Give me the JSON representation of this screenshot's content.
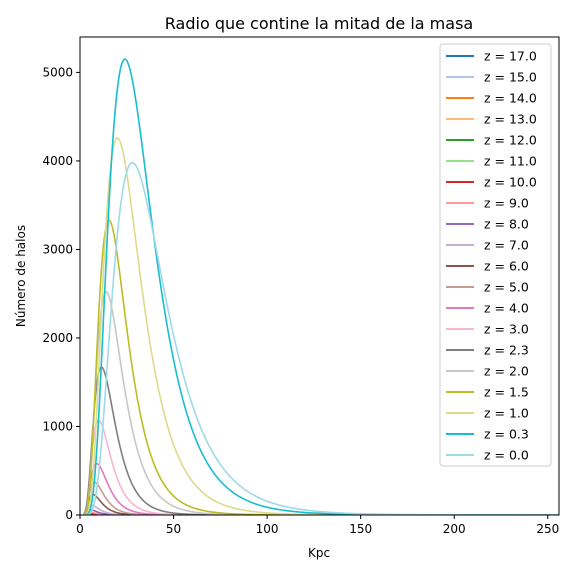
{
  "chart_data": {
    "type": "line",
    "title": "Radio que contine la mitad de la masa",
    "xlabel": "Kpc",
    "ylabel": "Número de halos",
    "xlim": [
      0,
      256
    ],
    "ylim": [
      0,
      5400
    ],
    "xticks": [
      0,
      50,
      100,
      150,
      200,
      250
    ],
    "yticks": [
      0,
      1000,
      2000,
      3000,
      4000,
      5000
    ],
    "legend_position": "top-right",
    "grid": false,
    "series": [
      {
        "name": "z = 17.0",
        "color": "#1f77b4",
        "peak_x": 2.5,
        "peak_y": 2,
        "x_start": 2
      },
      {
        "name": "z = 15.0",
        "color": "#aec7e8",
        "peak_x": 2.8,
        "peak_y": 3,
        "x_start": 2
      },
      {
        "name": "z = 14.0",
        "color": "#ff7f0e",
        "peak_x": 3.0,
        "peak_y": 4,
        "x_start": 2
      },
      {
        "name": "z = 13.0",
        "color": "#ffbb78",
        "peak_x": 3.3,
        "peak_y": 6,
        "x_start": 2
      },
      {
        "name": "z = 12.0",
        "color": "#2ca02c",
        "peak_x": 3.6,
        "peak_y": 8,
        "x_start": 2
      },
      {
        "name": "z = 11.0",
        "color": "#98df8a",
        "peak_x": 4.0,
        "peak_y": 12,
        "x_start": 2
      },
      {
        "name": "z = 10.0",
        "color": "#d62728",
        "peak_x": 4.4,
        "peak_y": 20,
        "x_start": 2
      },
      {
        "name": "z = 9.0",
        "color": "#ff9896",
        "peak_x": 4.9,
        "peak_y": 35,
        "x_start": 2
      },
      {
        "name": "z = 8.0",
        "color": "#9467bd",
        "peak_x": 5.5,
        "peak_y": 60,
        "x_start": 2
      },
      {
        "name": "z = 7.0",
        "color": "#c5b0d5",
        "peak_x": 6.2,
        "peak_y": 110,
        "x_start": 2
      },
      {
        "name": "z = 6.0",
        "color": "#8c564b",
        "peak_x": 7.0,
        "peak_y": 230,
        "x_start": 2
      },
      {
        "name": "z = 5.0",
        "color": "#c49c94",
        "peak_x": 7.8,
        "peak_y": 370,
        "x_start": 2
      },
      {
        "name": "z = 4.0",
        "color": "#e377c2",
        "peak_x": 9.0,
        "peak_y": 580,
        "x_start": 2
      },
      {
        "name": "z = 3.0",
        "color": "#f7b6d2",
        "peak_x": 10.0,
        "peak_y": 1070,
        "x_start": 2
      },
      {
        "name": "z = 2.3",
        "color": "#7f7f7f",
        "peak_x": 11.5,
        "peak_y": 1670,
        "x_start": 2
      },
      {
        "name": "z = 2.0",
        "color": "#c7c7c7",
        "peak_x": 14.0,
        "peak_y": 2520,
        "x_start": 2
      },
      {
        "name": "z = 1.5",
        "color": "#bcbd22",
        "peak_x": 15.5,
        "peak_y": 3330,
        "x_start": 2
      },
      {
        "name": "z = 1.0",
        "color": "#dbdb8d",
        "peak_x": 20.0,
        "peak_y": 4260,
        "x_start": 2
      },
      {
        "name": "z = 0.3",
        "color": "#17becf",
        "peak_x": 24.0,
        "peak_y": 5150,
        "x_start": 2
      },
      {
        "name": "z = 0.0",
        "color": "#9edae5",
        "peak_x": 28.0,
        "peak_y": 3980,
        "x_start": 2
      }
    ]
  }
}
